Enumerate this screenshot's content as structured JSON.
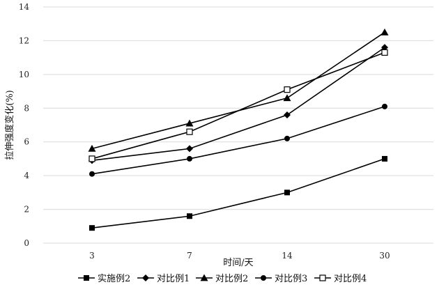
{
  "chart_data": {
    "type": "line",
    "categories": [
      "3",
      "7",
      "14",
      "30"
    ],
    "xlabel": "时间/天",
    "ylabel": "拉伸强度变化(%)",
    "ylim": [
      0,
      14
    ],
    "yticks": [
      0,
      2,
      4,
      6,
      8,
      10,
      12,
      14
    ],
    "grid": true,
    "legend_position": "bottom",
    "series": [
      {
        "name": "实施例2",
        "marker": "filled-square",
        "values": [
          0.9,
          1.6,
          3.0,
          5.0
        ]
      },
      {
        "name": "对比例1",
        "marker": "filled-diamond",
        "values": [
          4.9,
          5.6,
          7.6,
          11.6
        ]
      },
      {
        "name": "对比例2",
        "marker": "filled-triangle",
        "values": [
          5.6,
          7.1,
          8.6,
          12.5
        ]
      },
      {
        "name": "对比例3",
        "marker": "filled-circle",
        "values": [
          4.1,
          5.0,
          6.2,
          8.1
        ]
      },
      {
        "name": "对比例4",
        "marker": "open-square",
        "values": [
          5.0,
          6.6,
          9.1,
          11.3
        ]
      }
    ]
  }
}
